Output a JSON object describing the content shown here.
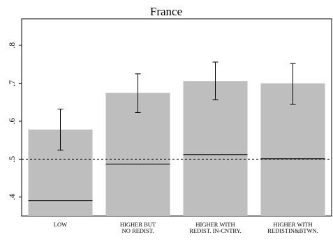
{
  "chart_data": {
    "type": "bar",
    "title": "France",
    "categories": [
      [
        "LOW"
      ],
      [
        "HIGHER BUT",
        "NO REDIST."
      ],
      [
        "HIGHER WITH",
        "REDIST. IN-CNTRY."
      ],
      [
        "HIGHER WITH",
        "REDISTIN&BTWN."
      ]
    ],
    "values": [
      0.578,
      0.675,
      0.706,
      0.7
    ],
    "error_bars": [
      {
        "low": 0.524,
        "high": 0.632
      },
      {
        "low": 0.623,
        "high": 0.725
      },
      {
        "low": 0.657,
        "high": 0.756
      },
      {
        "low": 0.645,
        "high": 0.752
      }
    ],
    "markers": [
      0.391,
      0.487,
      0.512,
      0.501
    ],
    "reference_line": 0.5,
    "ylim": [
      0.35,
      0.87
    ],
    "yticks": [
      {
        "value": 0.4,
        "label": ".4"
      },
      {
        "value": 0.5,
        "label": ".5"
      },
      {
        "value": 0.6,
        "label": ".6"
      },
      {
        "value": 0.7,
        "label": ".7"
      },
      {
        "value": 0.8,
        "label": ".8"
      }
    ],
    "xlabel": "",
    "ylabel": "",
    "grid": false,
    "colors": {
      "bar_fill": "#bebebe",
      "plot_background": "#ffffff",
      "page_background": "#ffffff",
      "axis": "#000000",
      "reference_line": "#000000"
    }
  }
}
